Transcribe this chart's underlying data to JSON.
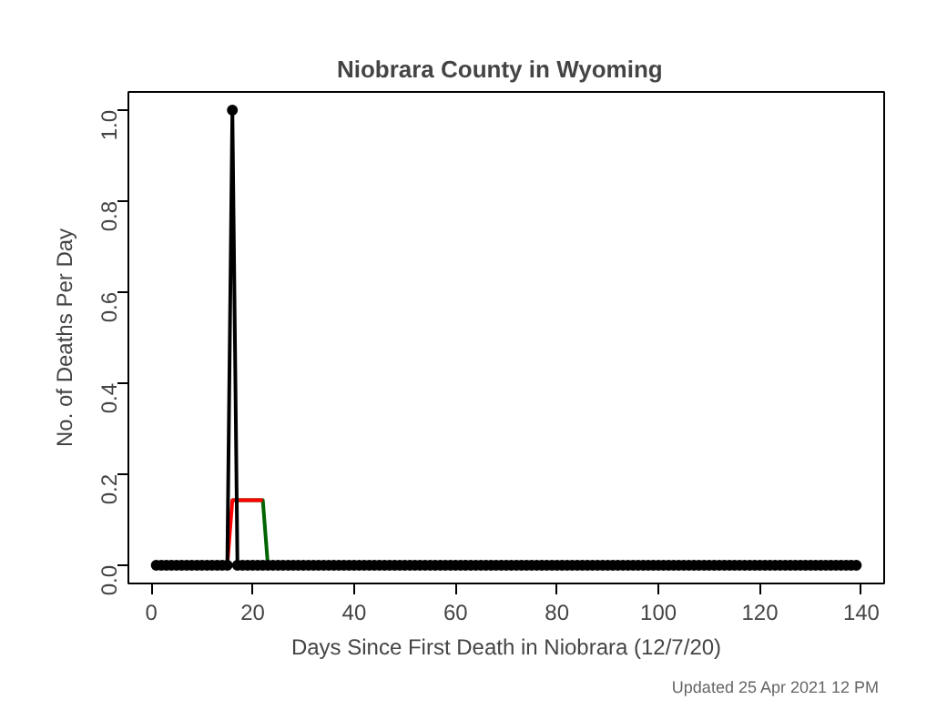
{
  "chart_data": {
    "type": "line",
    "title": "Niobrara  County in  Wyoming",
    "xlabel": "Days Since First Death in Niobrara (12/7/20)",
    "ylabel": "No. of Deaths Per Day",
    "annotations": [
      "Updated  25 Apr 2021 12 PM"
    ],
    "xlim": [
      -4.5,
      144.5
    ],
    "ylim": [
      -0.04,
      1.04
    ],
    "xticks": [
      0,
      20,
      40,
      60,
      80,
      100,
      120,
      140
    ],
    "yticks": [
      {
        "value": 0,
        "label": "0.0"
      },
      {
        "value": 0.2,
        "label": "0.2"
      },
      {
        "value": 0.4,
        "label": "0.4"
      },
      {
        "value": 0.6,
        "label": "0.6"
      },
      {
        "value": 0.8,
        "label": "0.8"
      },
      {
        "value": 1,
        "label": "1.0"
      }
    ],
    "grid": false,
    "series": [
      {
        "color": "#006400",
        "marker": "none",
        "x": [
          16,
          22,
          23
        ],
        "values": [
          0.143,
          0.143,
          0
        ]
      },
      {
        "color": "#ff0000",
        "marker": "none",
        "x": [
          7,
          15,
          16,
          22,
          23,
          24,
          139
        ],
        "values": [
          0,
          0,
          0.143,
          0.143,
          null,
          0,
          0
        ]
      },
      {
        "color": "#000000",
        "marker": "circle",
        "x": [
          1,
          2,
          3,
          4,
          5,
          6,
          7,
          8,
          9,
          10,
          11,
          12,
          13,
          14,
          15,
          16,
          17,
          18,
          19,
          20,
          21,
          22,
          23,
          24,
          25,
          26,
          27,
          28,
          29,
          30,
          31,
          32,
          33,
          34,
          35,
          36,
          37,
          38,
          39,
          40,
          41,
          42,
          43,
          44,
          45,
          46,
          47,
          48,
          49,
          50,
          51,
          52,
          53,
          54,
          55,
          56,
          57,
          58,
          59,
          60,
          61,
          62,
          63,
          64,
          65,
          66,
          67,
          68,
          69,
          70,
          71,
          72,
          73,
          74,
          75,
          76,
          77,
          78,
          79,
          80,
          81,
          82,
          83,
          84,
          85,
          86,
          87,
          88,
          89,
          90,
          91,
          92,
          93,
          94,
          95,
          96,
          97,
          98,
          99,
          100,
          101,
          102,
          103,
          104,
          105,
          106,
          107,
          108,
          109,
          110,
          111,
          112,
          113,
          114,
          115,
          116,
          117,
          118,
          119,
          120,
          121,
          122,
          123,
          124,
          125,
          126,
          127,
          128,
          129,
          130,
          131,
          132,
          133,
          134,
          135,
          136,
          137,
          138,
          139
        ],
        "values": [
          0,
          0,
          0,
          0,
          0,
          0,
          0,
          0,
          0,
          0,
          0,
          0,
          0,
          0,
          0,
          1,
          0,
          0,
          0,
          0,
          0,
          0,
          0,
          0,
          0,
          0,
          0,
          0,
          0,
          0,
          0,
          0,
          0,
          0,
          0,
          0,
          0,
          0,
          0,
          0,
          0,
          0,
          0,
          0,
          0,
          0,
          0,
          0,
          0,
          0,
          0,
          0,
          0,
          0,
          0,
          0,
          0,
          0,
          0,
          0,
          0,
          0,
          0,
          0,
          0,
          0,
          0,
          0,
          0,
          0,
          0,
          0,
          0,
          0,
          0,
          0,
          0,
          0,
          0,
          0,
          0,
          0,
          0,
          0,
          0,
          0,
          0,
          0,
          0,
          0,
          0,
          0,
          0,
          0,
          0,
          0,
          0,
          0,
          0,
          0,
          0,
          0,
          0,
          0,
          0,
          0,
          0,
          0,
          0,
          0,
          0,
          0,
          0,
          0,
          0,
          0,
          0,
          0,
          0,
          0,
          0,
          0,
          0,
          0,
          0,
          0,
          0,
          0,
          0,
          0,
          0,
          0,
          0,
          0,
          0,
          0,
          0,
          0,
          0
        ]
      }
    ]
  }
}
